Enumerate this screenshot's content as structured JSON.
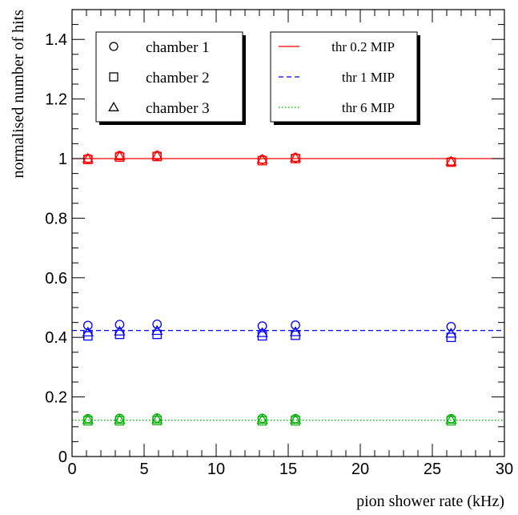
{
  "chart_data": {
    "type": "scatter",
    "xlabel": "pion shower rate (kHz)",
    "ylabel": "normalised number of hits",
    "xlim": [
      0,
      30
    ],
    "ylim": [
      0,
      1.5
    ],
    "x_ticks": [
      0,
      5,
      10,
      15,
      20,
      25,
      30
    ],
    "y_ticks": [
      0,
      0.2,
      0.4,
      0.6,
      0.8,
      1,
      1.2,
      1.4
    ],
    "x_tick_labels": [
      "0",
      "5",
      "10",
      "15",
      "20",
      "25",
      "30"
    ],
    "y_tick_labels": [
      "0",
      "0.2",
      "0.4",
      "0.6",
      "0.8",
      "1",
      "1.2",
      "1.4"
    ],
    "grid": false,
    "x": [
      1.1,
      3.3,
      5.9,
      13.2,
      15.5,
      26.3
    ],
    "thresholds": [
      {
        "name": "thr 0.2 MIP",
        "color": "#ff0000",
        "line_style": "solid",
        "line_value": 1.0,
        "chambers": [
          [
            1.0,
            1.01,
            1.01,
            0.997,
            1.003,
            0.99
          ],
          [
            0.997,
            1.005,
            1.007,
            0.993,
            1.0,
            0.988
          ],
          [
            1.0,
            1.008,
            1.01,
            0.997,
            1.003,
            0.99
          ]
        ]
      },
      {
        "name": "thr 1 MIP",
        "color": "#0000ff",
        "line_style": "dashed",
        "line_value": 0.423,
        "chambers": [
          [
            0.44,
            0.443,
            0.444,
            0.438,
            0.441,
            0.436
          ],
          [
            0.405,
            0.41,
            0.41,
            0.405,
            0.407,
            0.4
          ],
          [
            0.417,
            0.42,
            0.422,
            0.415,
            0.418,
            0.413
          ]
        ]
      },
      {
        "name": "thr 6 MIP",
        "color": "#00aa00",
        "line_style": "dotted",
        "line_value": 0.122,
        "chambers": [
          [
            0.127,
            0.128,
            0.129,
            0.128,
            0.127,
            0.127
          ],
          [
            0.12,
            0.12,
            0.121,
            0.12,
            0.12,
            0.12
          ],
          [
            0.124,
            0.124,
            0.125,
            0.124,
            0.124,
            0.124
          ]
        ]
      }
    ],
    "marker_legend": {
      "entries": [
        {
          "label": "chamber 1",
          "marker": "circle"
        },
        {
          "label": "chamber 2",
          "marker": "square"
        },
        {
          "label": "chamber 3",
          "marker": "triangle"
        }
      ],
      "placement": "top-left"
    },
    "line_legend": {
      "entries": [
        {
          "label": "thr 0.2 MIP",
          "color": "#ff0000",
          "line_style": "solid"
        },
        {
          "label": "thr 1 MIP",
          "color": "#0000ff",
          "line_style": "dashed"
        },
        {
          "label": "thr 6 MIP",
          "color": "#00aa00",
          "line_style": "dotted"
        }
      ],
      "placement": "top-center"
    }
  }
}
